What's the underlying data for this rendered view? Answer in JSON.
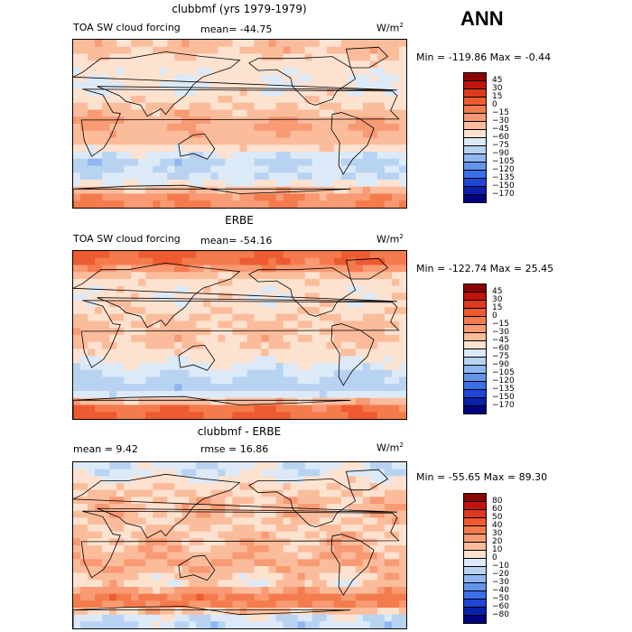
{
  "header": {
    "season": "ANN"
  },
  "chart_data": [
    {
      "type": "heatmap",
      "title": "clubbmf (yrs 1979-1979)",
      "variable": "TOA SW cloud forcing",
      "mean_text": "mean= -44.75",
      "units": "W/m",
      "units_sup": "2",
      "minmax_text": "Min = -119.86 Max =  -0.44",
      "min": -119.86,
      "max": -0.44,
      "levels": [
        "45",
        "30",
        "15",
        "0",
        "-15",
        "-30",
        "-45",
        "-60",
        "-75",
        "-90",
        "-105",
        "-120",
        "-135",
        "-150",
        "-170"
      ],
      "colors": [
        "#8b0000",
        "#c0140c",
        "#dd3a1d",
        "#ee5b30",
        "#f47b4d",
        "#f89a73",
        "#fbbc9c",
        "#fde2d0",
        "#dce9f7",
        "#b8d3f2",
        "#8fb6ee",
        "#6493ea",
        "#3c6ee6",
        "#1f46d6",
        "#0b1fa8",
        "#000080"
      ],
      "field": {
        "lat_bands": [
          80,
          60,
          40,
          20,
          0,
          -20,
          -40,
          -60,
          -80
        ],
        "band_means": [
          -40,
          -55,
          -60,
          -45,
          -30,
          -40,
          -80,
          -70,
          -15
        ]
      }
    },
    {
      "type": "heatmap",
      "title": "ERBE",
      "variable": "TOA SW cloud forcing",
      "mean_text": "mean= -54.16",
      "units": "W/m",
      "units_sup": "2",
      "minmax_text": "Min = -122.74 Max =  25.45",
      "min": -122.74,
      "max": 25.45,
      "levels": [
        "45",
        "30",
        "15",
        "0",
        "-15",
        "-30",
        "-45",
        "-60",
        "-75",
        "-90",
        "-105",
        "-120",
        "-135",
        "-150",
        "-170"
      ],
      "colors": [
        "#8b0000",
        "#c0140c",
        "#dd3a1d",
        "#ee5b30",
        "#f47b4d",
        "#f89a73",
        "#fbbc9c",
        "#fde2d0",
        "#dce9f7",
        "#b8d3f2",
        "#8fb6ee",
        "#6493ea",
        "#3c6ee6",
        "#1f46d6",
        "#0b1fa8",
        "#000080"
      ],
      "field": {
        "lat_bands": [
          80,
          60,
          40,
          20,
          0,
          -20,
          -40,
          -60,
          -80
        ],
        "band_means": [
          0,
          -50,
          -55,
          -45,
          -40,
          -50,
          -75,
          -85,
          0
        ]
      }
    },
    {
      "type": "heatmap",
      "title": "clubbmf - ERBE",
      "mean_text": "mean =    9.42",
      "rmse_text": "rmse =   16.86",
      "units": "W/m",
      "units_sup": "2",
      "minmax_text": "Min = -55.65 Max =  89.30",
      "min": -55.65,
      "max": 89.3,
      "levels": [
        "80",
        "60",
        "50",
        "40",
        "30",
        "20",
        "10",
        "0",
        "-10",
        "-20",
        "-30",
        "-40",
        "-50",
        "-60",
        "-80"
      ],
      "colors": [
        "#8b0000",
        "#c0140c",
        "#dd3a1d",
        "#ee5b30",
        "#f47b4d",
        "#f89a73",
        "#fbbc9c",
        "#fde2d0",
        "#dce9f7",
        "#b8d3f2",
        "#8fb6ee",
        "#6493ea",
        "#3c6ee6",
        "#1f46d6",
        "#0b1fa8",
        "#000080"
      ],
      "field": {
        "lat_bands": [
          80,
          60,
          40,
          20,
          0,
          -20,
          -40,
          -60,
          -80
        ],
        "band_means": [
          -5,
          10,
          15,
          10,
          15,
          20,
          5,
          40,
          -10
        ]
      }
    }
  ]
}
